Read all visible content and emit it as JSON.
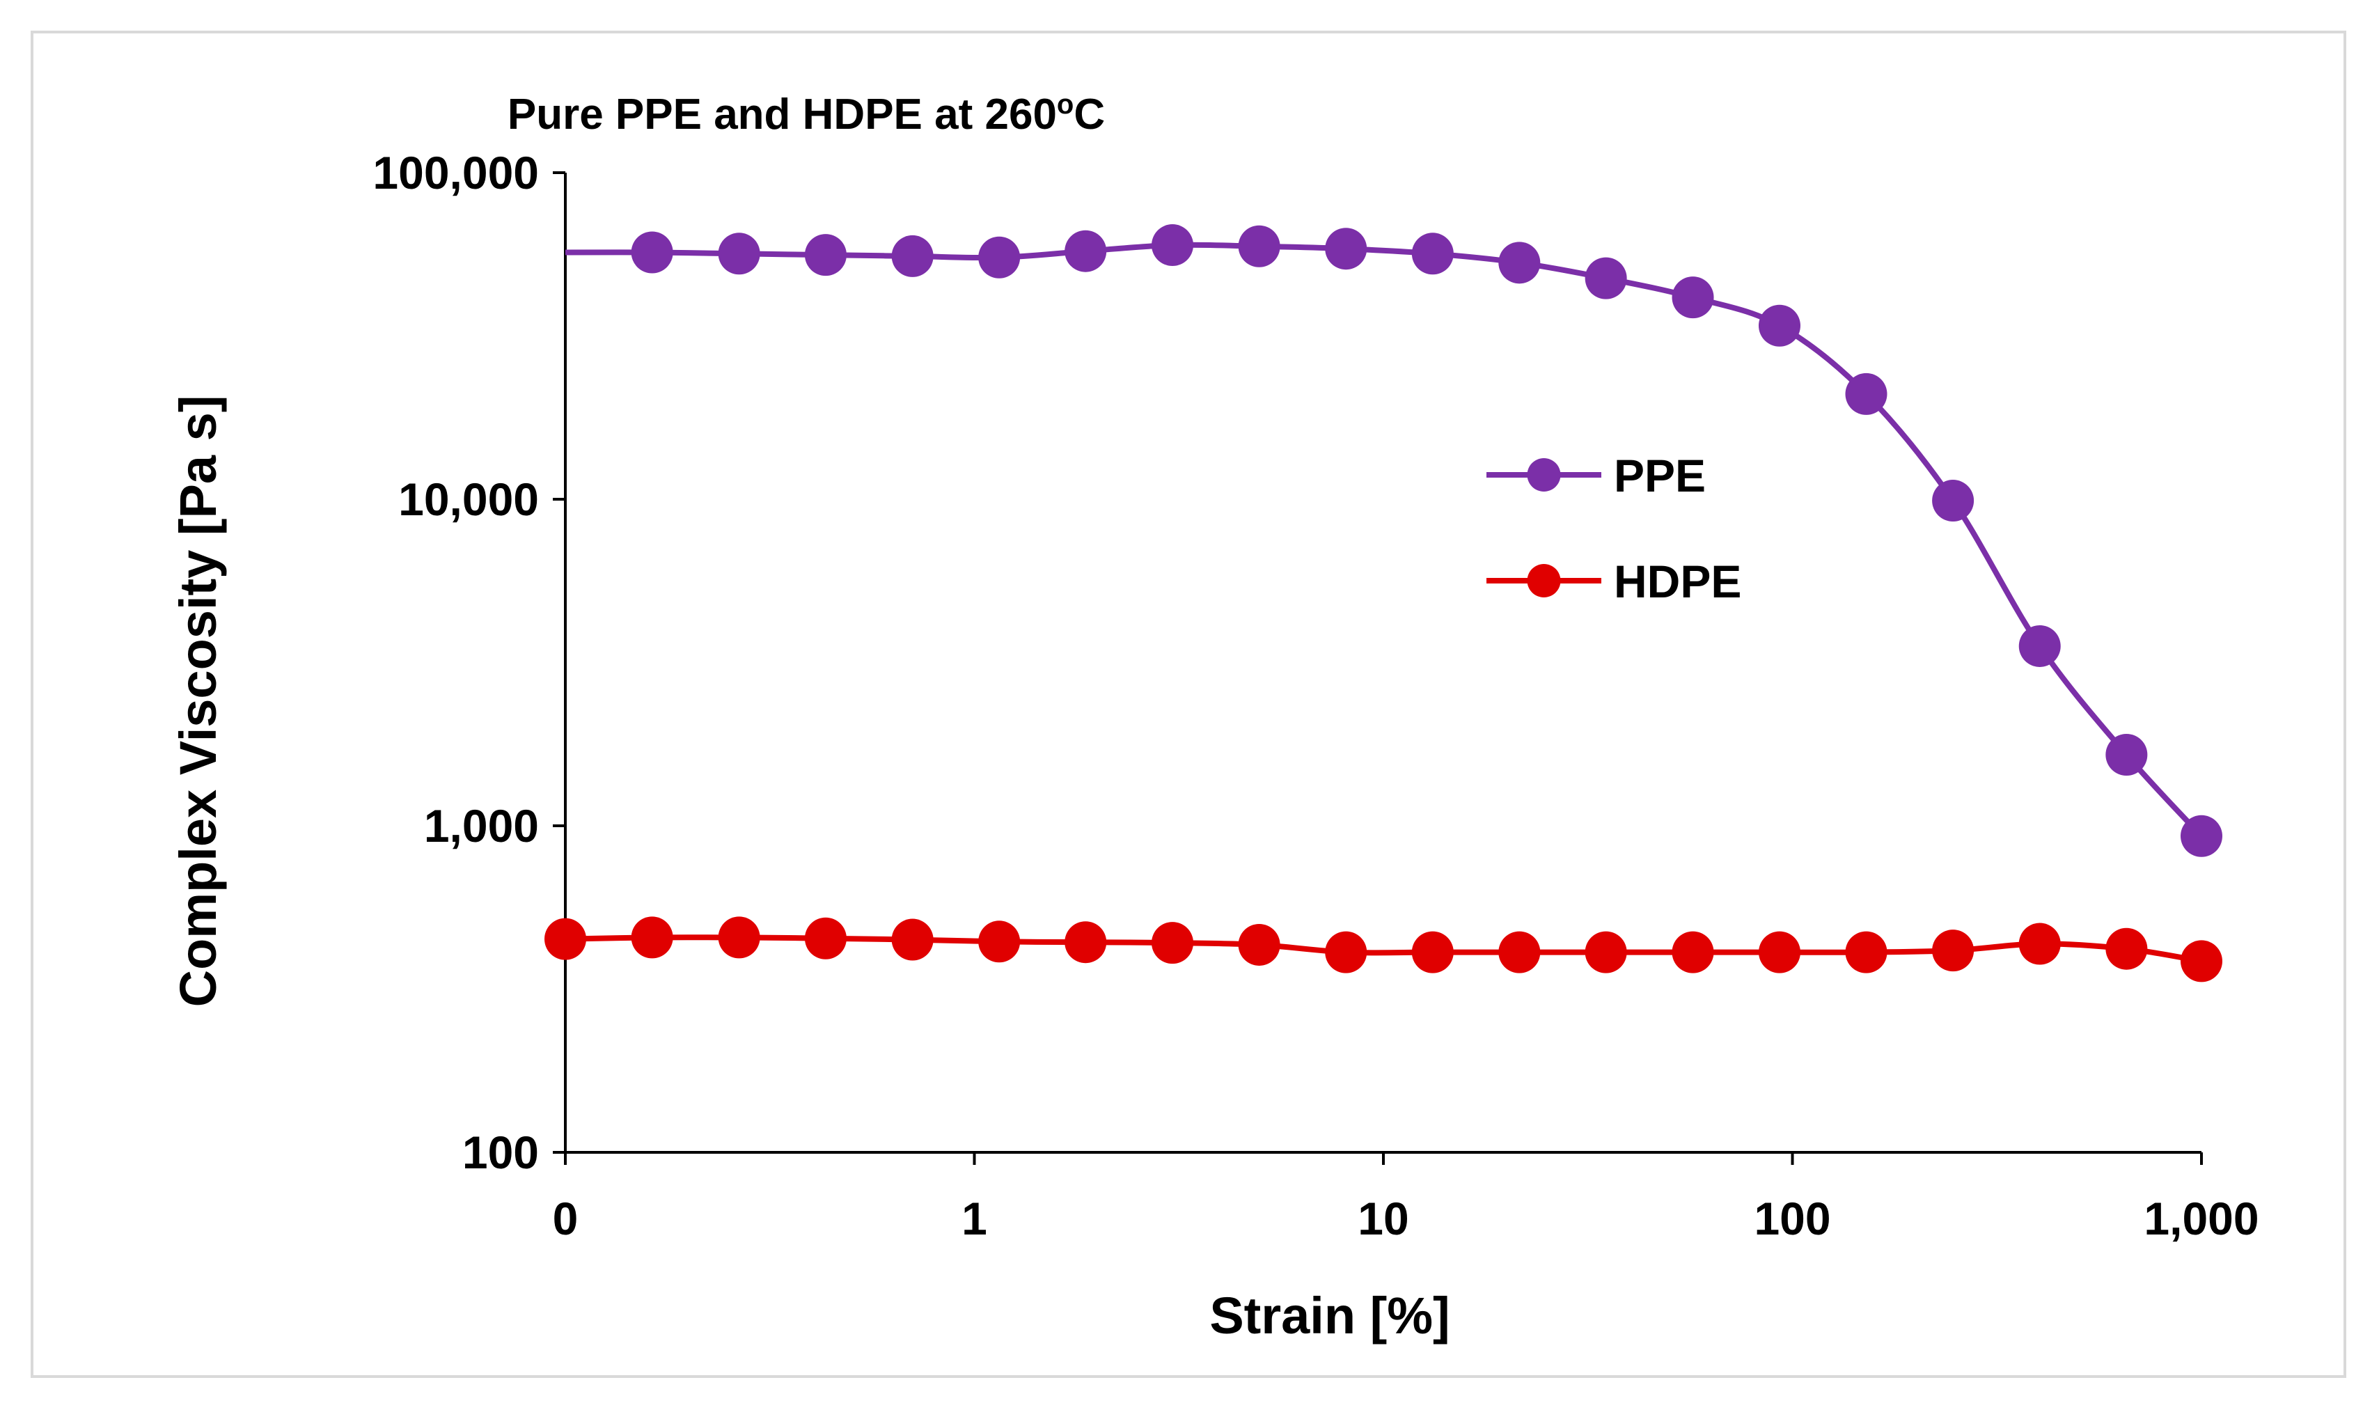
{
  "chart_data": {
    "type": "line",
    "title": "Pure PPE and HDPE at 260",
    "title_superscript": "o",
    "title_suffix": "C",
    "xlabel": "Strain [%]",
    "ylabel": "Complex Viscosity [Pa s]",
    "x_scale": "log",
    "y_scale": "log",
    "xlim": [
      0.1,
      1000
    ],
    "ylim": [
      100,
      100000
    ],
    "x_tick_values": [
      0.1,
      1,
      10,
      100,
      1000
    ],
    "x_tick_labels": [
      "0",
      "1",
      "10",
      "100",
      "1,000"
    ],
    "y_tick_values": [
      100,
      1000,
      10000,
      100000
    ],
    "y_tick_labels": [
      "100",
      "1,000",
      "10,000",
      "100,000"
    ],
    "grid": false,
    "legend_position": "right-center",
    "x": [
      0.1,
      0.163,
      0.266,
      0.433,
      0.706,
      1.15,
      1.87,
      3.05,
      4.97,
      8.1,
      13.2,
      21.5,
      35.0,
      57.1,
      93.0,
      151.5,
      246.9,
      402.4,
      655.8,
      1000
    ],
    "series": [
      {
        "name": "PPE",
        "color": "#7b2fa8",
        "values": [
          57000,
          57000,
          56500,
          56000,
          55500,
          55000,
          57500,
          60000,
          59500,
          58500,
          56500,
          53000,
          47500,
          41500,
          34000,
          21000,
          9900,
          3550,
          1650,
          930
        ],
        "show_start_marker": false
      },
      {
        "name": "HDPE",
        "color": "#e00000",
        "values": [
          450,
          455,
          455,
          452,
          448,
          442,
          440,
          438,
          432,
          410,
          410,
          410,
          410,
          410,
          410,
          410,
          415,
          435,
          420,
          385
        ],
        "show_start_marker": true
      }
    ]
  }
}
